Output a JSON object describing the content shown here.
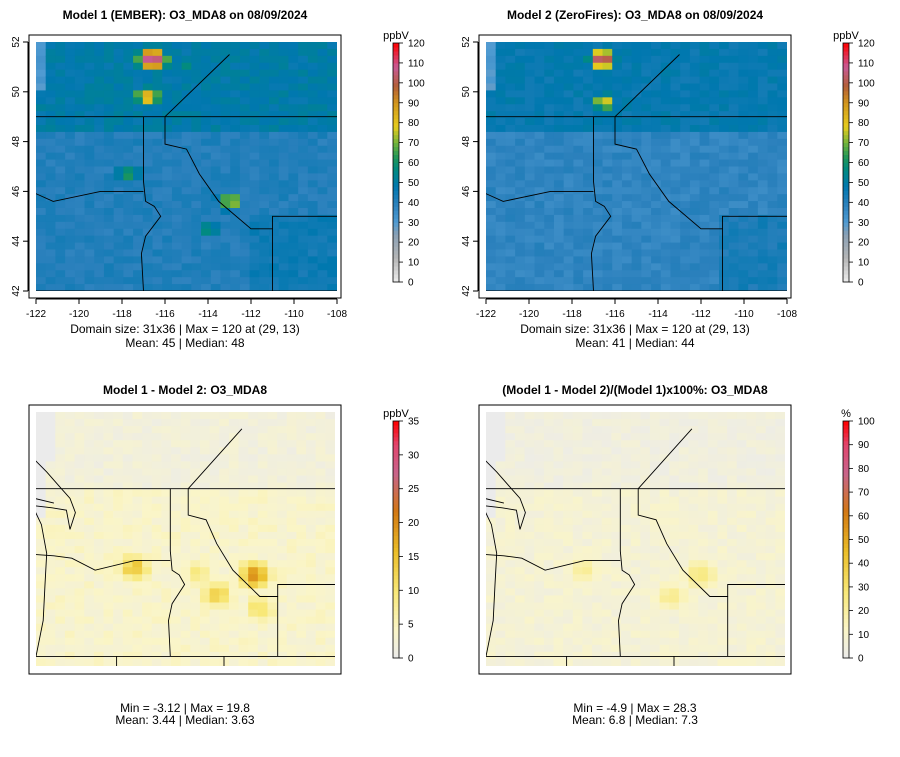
{
  "chart_data": [
    {
      "type": "heatmap",
      "title": "Model 1 (EMBER): O3_MDA8 on 08/09/2024",
      "x_ticks": [
        "-122",
        "-120",
        "-118",
        "-116",
        "-114",
        "-112",
        "-110",
        "-108"
      ],
      "y_ticks": [
        "42",
        "44",
        "46",
        "48",
        "50",
        "52"
      ],
      "colorbar": {
        "unit": "ppbV",
        "ticks": [
          "0",
          "10",
          "20",
          "30",
          "40",
          "50",
          "60",
          "70",
          "80",
          "90",
          "100",
          "110",
          "120"
        ],
        "min": 0,
        "max": 120
      },
      "stats": [
        "Domain size: 31x36 | Max = 120 at (29, 13)",
        "Mean: 45 |  Median: 48"
      ],
      "hotspots": [
        {
          "lon": -116.6,
          "lat": 51.3,
          "value": 110
        },
        {
          "lon": -116.8,
          "lat": 49.8,
          "value": 80
        },
        {
          "lon": -113.0,
          "lat": 45.6,
          "value": 72
        },
        {
          "lon": -117.7,
          "lat": 46.7,
          "value": 60
        },
        {
          "lon": -114.0,
          "lat": 44.5,
          "value": 56
        },
        {
          "lon": -115.0,
          "lat": 51.0,
          "value": 55
        }
      ]
    },
    {
      "type": "heatmap",
      "title": "Model 2 (ZeroFires): O3_MDA8 on 08/09/2024",
      "x_ticks": [
        "-122",
        "-120",
        "-118",
        "-116",
        "-114",
        "-112",
        "-110",
        "-108"
      ],
      "y_ticks": [
        "42",
        "44",
        "46",
        "48",
        "50",
        "52"
      ],
      "colorbar": {
        "unit": "ppbV",
        "ticks": [
          "0",
          "10",
          "20",
          "30",
          "40",
          "50",
          "60",
          "70",
          "80",
          "90",
          "100",
          "110",
          "120"
        ],
        "min": 0,
        "max": 120
      },
      "stats": [
        "Domain size: 31x36 | Max = 120 at (29, 13)",
        "Mean: 41 |  Median: 44"
      ],
      "hotspots": [
        {
          "lon": -116.6,
          "lat": 51.3,
          "value": 110
        },
        {
          "lon": -116.5,
          "lat": 49.6,
          "value": 78
        },
        {
          "lon": -115.2,
          "lat": 50.6,
          "value": 52
        }
      ]
    },
    {
      "type": "heatmap",
      "title": "Model 1 - Model 2: O3_MDA8",
      "colorbar": {
        "unit": "ppbV",
        "ticks": [
          "0",
          "5",
          "10",
          "15",
          "20",
          "25",
          "30",
          "35"
        ],
        "min": 0,
        "max": 35
      },
      "stats": [
        "Min = -3.12 | Max = 19.8",
        "Mean: 3.44 |  Median: 3.63"
      ],
      "hotspots": [
        {
          "lon": -119.0,
          "lat": 45.7,
          "value": 14
        },
        {
          "lon": -112.3,
          "lat": 45.4,
          "value": 19
        },
        {
          "lon": -114.4,
          "lat": 44.6,
          "value": 12
        },
        {
          "lon": -112.0,
          "lat": 44.0,
          "value": 10
        },
        {
          "lon": -115.5,
          "lat": 45.5,
          "value": 8
        }
      ]
    },
    {
      "type": "heatmap",
      "title": "(Model 1 - Model 2)/(Model 1)x100%: O3_MDA8",
      "colorbar": {
        "unit": "%",
        "ticks": [
          "0",
          "10",
          "20",
          "30",
          "40",
          "50",
          "60",
          "70",
          "80",
          "90",
          "100"
        ],
        "min": 0,
        "max": 100
      },
      "stats": [
        "Min = -4.9 | Max = 28.3",
        "Mean: 6.8 |  Median: 7.3"
      ],
      "hotspots": [
        {
          "lon": -112.5,
          "lat": 45.4,
          "value": 26
        },
        {
          "lon": -114.2,
          "lat": 44.5,
          "value": 22
        },
        {
          "lon": -119.0,
          "lat": 45.6,
          "value": 20
        }
      ]
    }
  ]
}
